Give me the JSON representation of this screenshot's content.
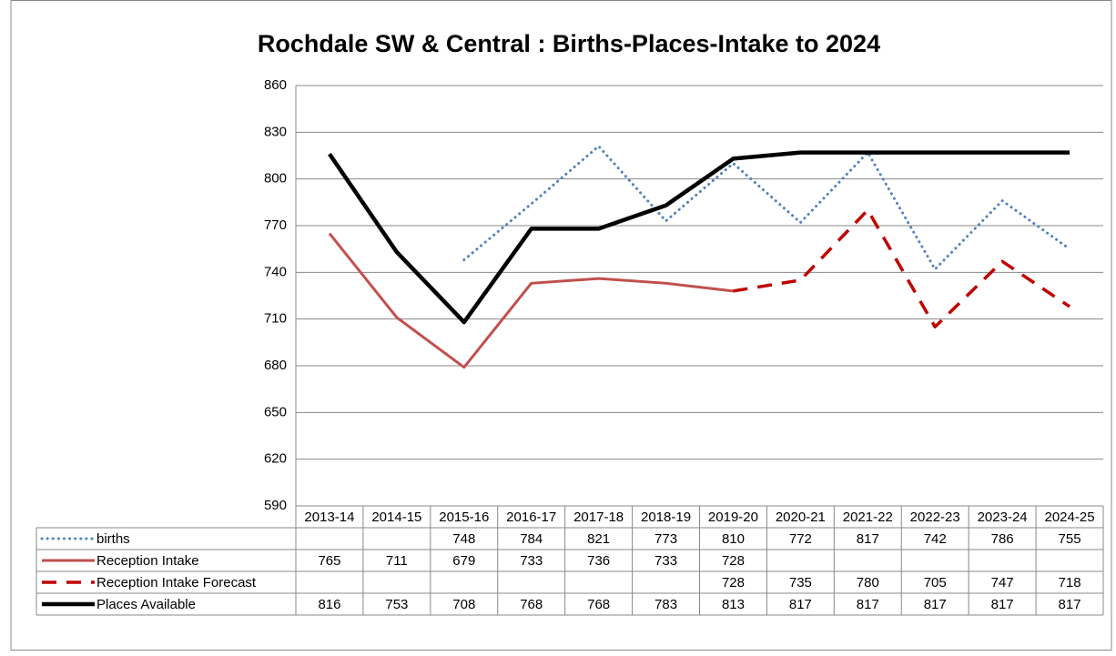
{
  "chart_data": {
    "type": "line",
    "title": "Rochdale SW & Central : Births-Places-Intake to 2024",
    "categories": [
      "2013-14",
      "2014-15",
      "2015-16",
      "2016-17",
      "2017-18",
      "2018-19",
      "2019-20",
      "2020-21",
      "2021-22",
      "2022-23",
      "2023-24",
      "2024-25"
    ],
    "series": [
      {
        "name": "births",
        "color": "#4f81bd",
        "style": "dotted",
        "values": [
          null,
          null,
          748,
          784,
          821,
          773,
          810,
          772,
          817,
          742,
          786,
          755
        ]
      },
      {
        "name": "Reception Intake",
        "color": "#c0504d",
        "style": "solid",
        "values": [
          765,
          711,
          679,
          733,
          736,
          733,
          728,
          null,
          null,
          null,
          null,
          null
        ]
      },
      {
        "name": "Reception Intake Forecast",
        "color": "#c00000",
        "style": "dashed",
        "values": [
          null,
          null,
          null,
          null,
          null,
          null,
          728,
          735,
          780,
          705,
          747,
          718
        ]
      },
      {
        "name": "Places Available",
        "color": "#000000",
        "style": "solid-thick",
        "values": [
          816,
          753,
          708,
          768,
          768,
          783,
          813,
          817,
          817,
          817,
          817,
          817
        ]
      }
    ],
    "ylim": [
      590,
      860
    ],
    "yticks": [
      590,
      620,
      650,
      680,
      710,
      740,
      770,
      800,
      830,
      860
    ],
    "grid": true
  }
}
